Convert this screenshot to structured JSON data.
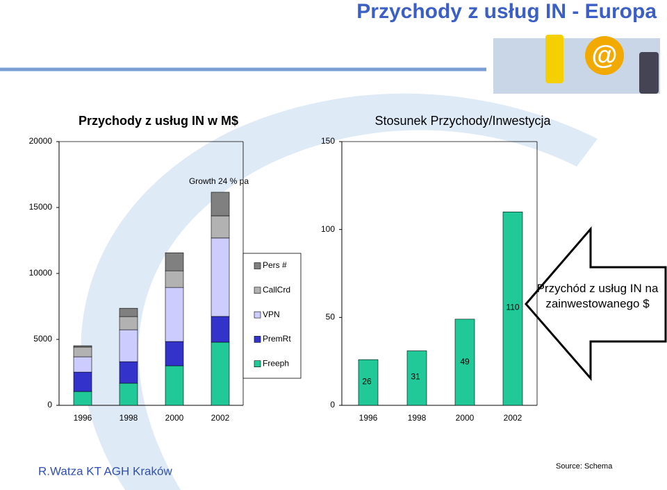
{
  "title": "Przychody z usług IN - Europa",
  "footer": "R.Watza KT AGH Kraków",
  "source": "Source: Schema",
  "chart_data": [
    {
      "type": "stacked_bar",
      "title": "Przychody z usług IN w M$",
      "categories": [
        "1996",
        "1998",
        "2000",
        "2002"
      ],
      "series": [
        {
          "name": "Freeph",
          "color": "#20c997",
          "values": [
            1050,
            1680,
            3000,
            4790
          ]
        },
        {
          "name": "PremRt",
          "color": "#3333cc",
          "values": [
            1470,
            1630,
            1840,
            1950
          ]
        },
        {
          "name": "VPN",
          "color": "#ccccff",
          "values": [
            1160,
            2420,
            4100,
            5950
          ]
        },
        {
          "name": "CallCrd",
          "color": "#b2b2b2",
          "values": [
            740,
            1000,
            1260,
            1680
          ]
        },
        {
          "name": "Pers #",
          "color": "#808080",
          "values": [
            100,
            630,
            1370,
            1790
          ]
        }
      ],
      "ylim": [
        0,
        20000
      ],
      "yticks": [
        0,
        5000,
        10000,
        15000,
        20000
      ],
      "annotation": "Growth 24 % pa",
      "legend": "right"
    },
    {
      "type": "bar",
      "title": "Stosunek Przychody/Inwestycja",
      "categories": [
        "1996",
        "1998",
        "2000",
        "2002"
      ],
      "values": [
        26,
        31,
        49,
        110
      ],
      "color": "#20c997",
      "ylim": [
        0,
        150
      ],
      "yticks": [
        0,
        50,
        100,
        150
      ],
      "annotation": "Przychód z usług IN na zainwestowanego $"
    }
  ]
}
